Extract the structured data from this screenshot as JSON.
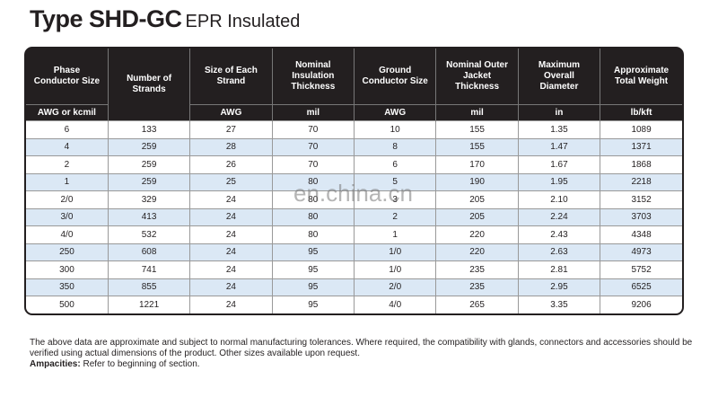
{
  "header": {
    "title": "Type SHD-GC",
    "subtitle": "EPR Insulated"
  },
  "table": {
    "columns": [
      {
        "header": "Phase Conductor Size",
        "unit": "AWG or kcmil"
      },
      {
        "header": "Number of Strands"
      },
      {
        "header": "Size of Each Strand",
        "unit": "AWG"
      },
      {
        "header": "Nominal Insulation Thickness",
        "unit": "mil"
      },
      {
        "header": "Ground Conductor Size",
        "unit": "AWG"
      },
      {
        "header": "Nominal Outer Jacket Thickness",
        "unit": "mil"
      },
      {
        "header": "Maximum Overall Diameter",
        "unit": "in"
      },
      {
        "header": "Approximate Total Weight",
        "unit": "lb/kft"
      }
    ],
    "rows": [
      [
        "6",
        "133",
        "27",
        "70",
        "10",
        "155",
        "1.35",
        "1089"
      ],
      [
        "4",
        "259",
        "28",
        "70",
        "8",
        "155",
        "1.47",
        "1371"
      ],
      [
        "2",
        "259",
        "26",
        "70",
        "6",
        "170",
        "1.67",
        "1868"
      ],
      [
        "1",
        "259",
        "25",
        "80",
        "5",
        "190",
        "1.95",
        "2218"
      ],
      [
        "2/0",
        "329",
        "24",
        "80",
        "3",
        "205",
        "2.10",
        "3152"
      ],
      [
        "3/0",
        "413",
        "24",
        "80",
        "2",
        "205",
        "2.24",
        "3703"
      ],
      [
        "4/0",
        "532",
        "24",
        "80",
        "1",
        "220",
        "2.43",
        "4348"
      ],
      [
        "250",
        "608",
        "24",
        "95",
        "1/0",
        "220",
        "2.63",
        "4973"
      ],
      [
        "300",
        "741",
        "24",
        "95",
        "1/0",
        "235",
        "2.81",
        "5752"
      ],
      [
        "350",
        "855",
        "24",
        "95",
        "2/0",
        "235",
        "2.95",
        "6525"
      ],
      [
        "500",
        "1221",
        "24",
        "95",
        "4/0",
        "265",
        "3.35",
        "9206"
      ]
    ]
  },
  "watermark": "en.china.cn",
  "notes": {
    "text": "The above data are approximate and subject to normal manufacturing tolerances. Where required, the compatibility with glands, connectors and accessories should be verified using actual dimensions of the product. Other sizes available upon request.",
    "ampacities_label": "Ampacities:",
    "ampacities_text": "Refer to beginning of section."
  }
}
